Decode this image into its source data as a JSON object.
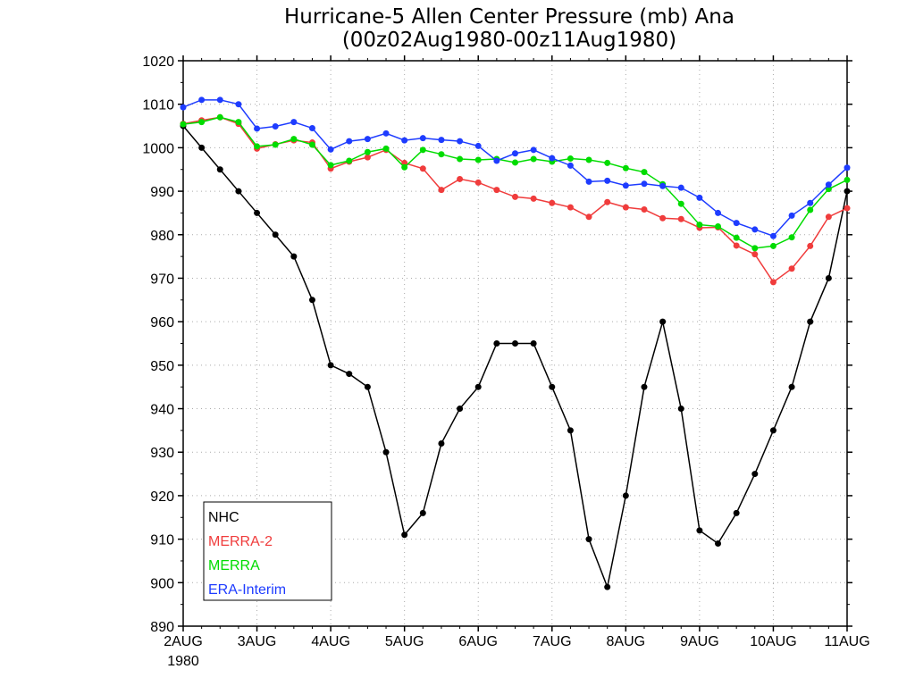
{
  "chart_data": {
    "type": "line",
    "title": "Hurricane-5 Allen Center Pressure (mb) Ana",
    "subtitle": "(00z02Aug1980-00z11Aug1980)",
    "xlabel": "",
    "ylabel": "",
    "x_unit": "days from 00z02Aug1980 (6-hourly)",
    "x": [
      0,
      0.25,
      0.5,
      0.75,
      1,
      1.25,
      1.5,
      1.75,
      2,
      2.25,
      2.5,
      2.75,
      3,
      3.25,
      3.5,
      3.75,
      4,
      4.25,
      4.5,
      4.75,
      5,
      5.25,
      5.5,
      5.75,
      6,
      6.25,
      6.5,
      6.75,
      7,
      7.25,
      7.5,
      7.75,
      8,
      8.25,
      8.5,
      8.75,
      9
    ],
    "x_ticks": [
      0,
      1,
      2,
      3,
      4,
      5,
      6,
      7,
      8,
      9
    ],
    "x_tick_labels": [
      "2AUG",
      "3AUG",
      "4AUG",
      "5AUG",
      "6AUG",
      "7AUG",
      "8AUG",
      "9AUG",
      "10AUG",
      "11AUG"
    ],
    "x_year_label": "1980",
    "ylim": [
      890,
      1020
    ],
    "y_ticks": [
      890,
      900,
      910,
      920,
      930,
      940,
      950,
      960,
      970,
      980,
      990,
      1000,
      1010,
      1020
    ],
    "grid": true,
    "legend_position": "bottom-left",
    "series": [
      {
        "name": "NHC",
        "color": "#000000",
        "values": [
          1005,
          1000,
          995,
          990,
          985,
          980,
          975,
          965,
          950,
          948,
          945,
          930,
          911,
          916,
          932,
          940,
          945,
          955,
          955,
          955,
          945,
          935,
          910,
          899,
          920,
          945,
          960,
          940,
          912,
          909,
          916,
          925,
          935,
          945,
          960,
          970,
          990
        ]
      },
      {
        "name": "MERRA-2",
        "color": "#f03c3c",
        "values": [
          1005.5,
          1006.3,
          1007.0,
          1005.5,
          999.8,
          1000.8,
          1001.7,
          1001.2,
          995.2,
          996.8,
          997.8,
          999.5,
          996.5,
          995.2,
          990.3,
          992.8,
          992.0,
          990.3,
          988.7,
          988.3,
          987.3,
          986.3,
          984.1,
          987.5,
          986.3,
          985.8,
          983.8,
          983.6,
          981.6,
          981.7,
          977.5,
          975.5,
          969.1,
          972.2,
          977.4,
          984.1,
          986.1
        ]
      },
      {
        "name": "MERRA",
        "color": "#00dc00",
        "values": [
          1005.4,
          1005.9,
          1007.0,
          1005.9,
          1000.3,
          1000.7,
          1002.0,
          1000.7,
          996.0,
          997.0,
          999.0,
          999.8,
          995.5,
          999.5,
          998.5,
          997.4,
          997.2,
          997.4,
          996.6,
          997.4,
          996.8,
          997.5,
          997.2,
          996.5,
          995.3,
          994.4,
          991.6,
          987.1,
          982.3,
          981.9,
          979.3,
          976.9,
          977.4,
          979.4,
          985.7,
          990.5,
          992.6
        ]
      },
      {
        "name": "ERA-Interim",
        "color": "#1e3cff",
        "values": [
          1009.3,
          1011.0,
          1011.0,
          1010.0,
          1004.4,
          1004.9,
          1005.9,
          1004.5,
          999.6,
          1001.5,
          1002.0,
          1003.3,
          1001.7,
          1002.2,
          1001.8,
          1001.5,
          1000.4,
          997.0,
          998.7,
          999.5,
          997.6,
          995.9,
          992.2,
          992.4,
          991.3,
          991.7,
          991.2,
          990.8,
          988.5,
          985.0,
          982.7,
          981.2,
          979.7,
          984.4,
          987.3,
          991.5,
          995.4
        ]
      }
    ]
  }
}
